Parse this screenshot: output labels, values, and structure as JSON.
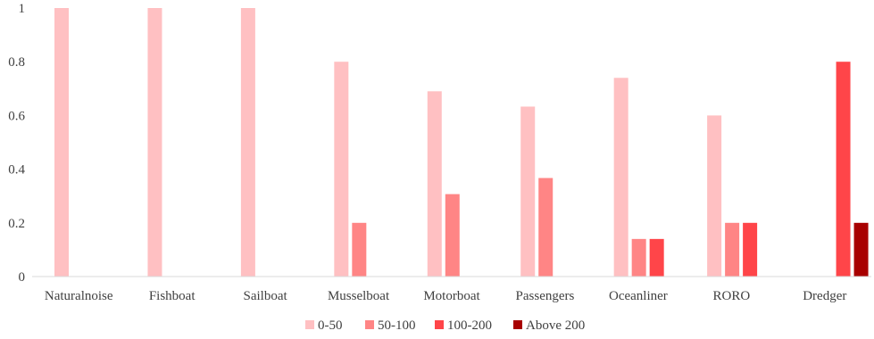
{
  "chart_data": {
    "type": "bar",
    "categories": [
      "Naturalnoise",
      "Fishboat",
      "Sailboat",
      "Musselboat",
      "Motorboat",
      "Passengers",
      "Oceanliner",
      "RORO",
      "Dredger"
    ],
    "series": [
      {
        "name": "0-50",
        "color": "#FFC0C2",
        "values": [
          1,
          1,
          1,
          0.8,
          0.69,
          0.633,
          0.74,
          0.6,
          0
        ]
      },
      {
        "name": "50-100",
        "color": "#FF8585",
        "values": [
          0,
          0,
          0,
          0.2,
          0.307,
          0.367,
          0.14,
          0.2,
          0
        ]
      },
      {
        "name": "100-200",
        "color": "#FF4549",
        "values": [
          0,
          0,
          0,
          0,
          0,
          0,
          0.14,
          0.2,
          0.8
        ]
      },
      {
        "name": "Above 200",
        "color": "#A80000",
        "values": [
          0,
          0,
          0,
          0,
          0,
          0,
          0,
          0,
          0.2
        ]
      }
    ],
    "yticks": [
      "0",
      "0.2",
      "0.4",
      "0.6",
      "0.8",
      "1"
    ],
    "ylim": [
      0,
      1
    ],
    "grid": false,
    "legend": "bottom",
    "title": "",
    "xlabel": "",
    "ylabel": ""
  }
}
